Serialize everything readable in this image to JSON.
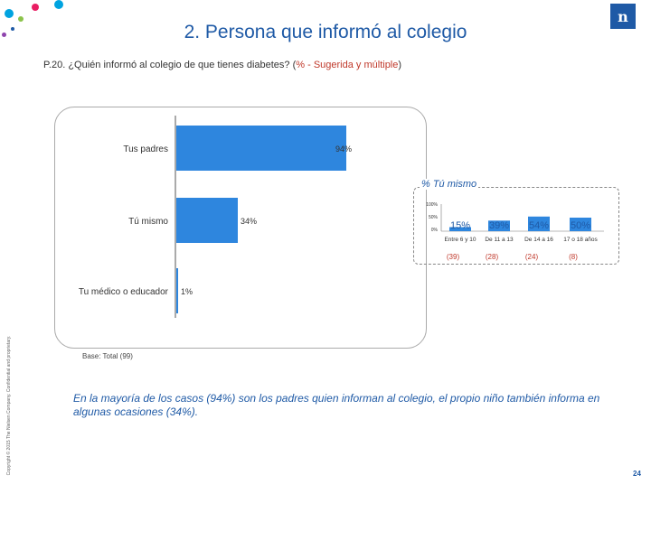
{
  "header": {
    "title": "2. Persona que informó al colegio",
    "logo_text": "n"
  },
  "question": {
    "prefix": "P.20. ¿Quién informó al colegio de que tienes diabetes? (",
    "accent": "% - Sugerida y múltiple",
    "suffix": ")"
  },
  "chart_data": [
    {
      "type": "bar",
      "orientation": "horizontal",
      "categories": [
        "Tus padres",
        "Tú mismo",
        "Tu médico o educador"
      ],
      "values": [
        94,
        34,
        1
      ],
      "value_labels": [
        "94%",
        "34%",
        "1%"
      ],
      "xlim": [
        0,
        100
      ],
      "color": "#2e86de"
    },
    {
      "type": "bar",
      "title": "% Tú mismo",
      "yticks": [
        "100%",
        "50%",
        "0%"
      ],
      "ylim": [
        0,
        100
      ],
      "categories": [
        "Entre 6 y 10",
        "De 11 a 13",
        "De 14 a 16",
        "17 o 18 años"
      ],
      "values": [
        15,
        39,
        54,
        50
      ],
      "value_labels": [
        "15%",
        "39%",
        "54%",
        "50%"
      ],
      "bases": [
        "(39)",
        "(28)",
        "(24)",
        "(8)"
      ],
      "color": "#2e86de"
    }
  ],
  "footer": {
    "base": "Base: Total (99)",
    "summary": "En la mayoría de los casos (94%) son los padres quien informan al colegio, el propio niño también informa en algunas ocasiones (34%).",
    "page": "24",
    "copyright": "Copyright © 2015 The Nielsen Company. Confidential and proprietary."
  }
}
